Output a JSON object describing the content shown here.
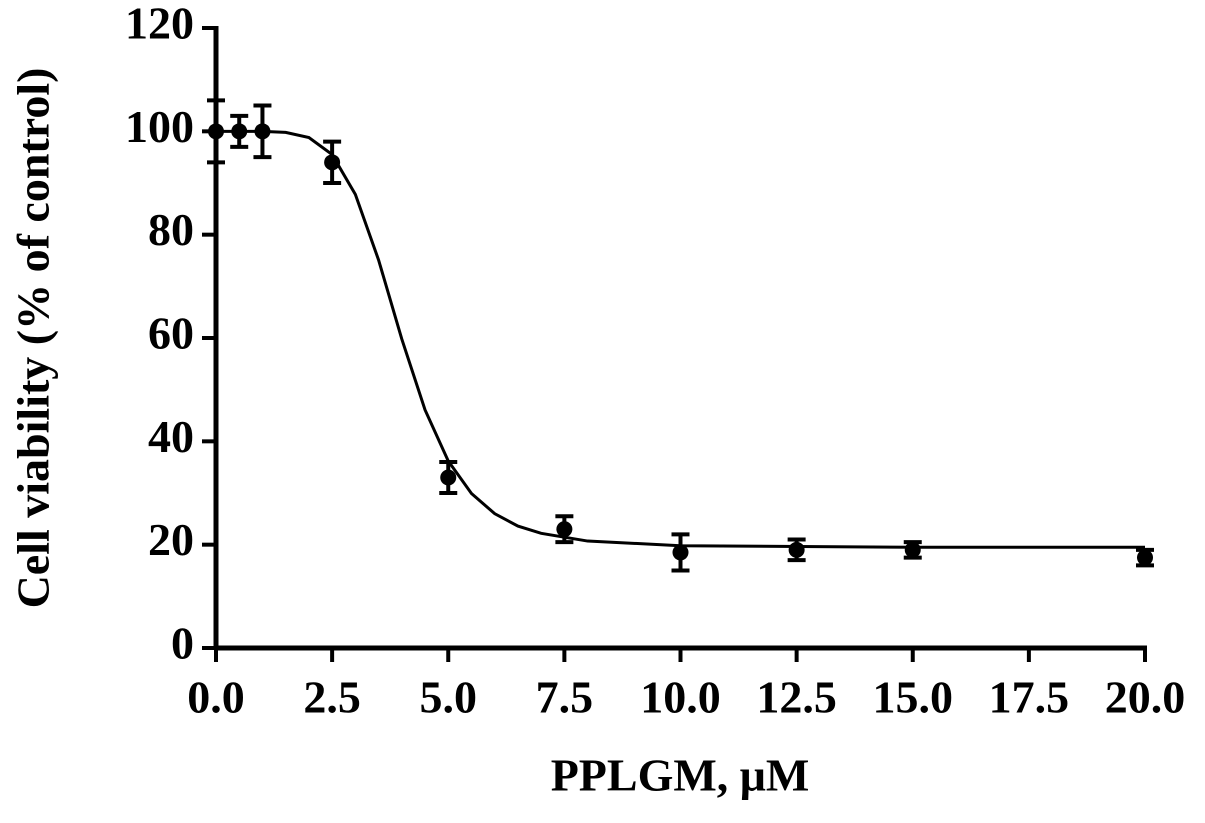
{
  "chart_data": {
    "type": "scatter",
    "xlabel": "PPLGM, μM",
    "ylabel": "Cell viability (% of control)",
    "x": [
      0,
      0.5,
      1,
      2.5,
      5,
      7.5,
      10,
      12.5,
      15,
      20
    ],
    "series": [
      {
        "color": "#000000",
        "values": [
          100,
          100,
          100,
          94,
          33,
          23,
          18.5,
          19,
          19,
          17.5
        ],
        "errors": [
          6,
          3,
          5,
          4,
          3,
          2.5,
          3.5,
          2,
          1.5,
          1.5
        ]
      }
    ],
    "fit": {
      "color": "#000000",
      "x": [
        0,
        0.5,
        1,
        1.5,
        2,
        2.5,
        3,
        3.5,
        4,
        4.5,
        5,
        5.5,
        6,
        6.5,
        7,
        8,
        10,
        15,
        20
      ],
      "values": [
        100,
        100,
        100,
        99.8,
        98.8,
        95.5,
        87.8,
        75.1,
        59.8,
        46.1,
        36.2,
        29.9,
        26.0,
        23.6,
        22.2,
        20.7,
        19.8,
        19.5,
        19.5
      ]
    },
    "xlim": [
      0,
      20
    ],
    "ylim": [
      0,
      120
    ],
    "xticks": [
      {
        "value": 0,
        "label": "0.0"
      },
      2.5,
      {
        "value": 5,
        "label": "5.0"
      },
      7.5,
      {
        "value": 10,
        "label": "10.0"
      },
      12.5,
      {
        "value": 15,
        "label": "15.0"
      },
      17.5,
      {
        "value": 20,
        "label": "20.0"
      }
    ],
    "yticks": [
      0,
      20,
      40,
      60,
      80,
      100,
      120
    ]
  }
}
